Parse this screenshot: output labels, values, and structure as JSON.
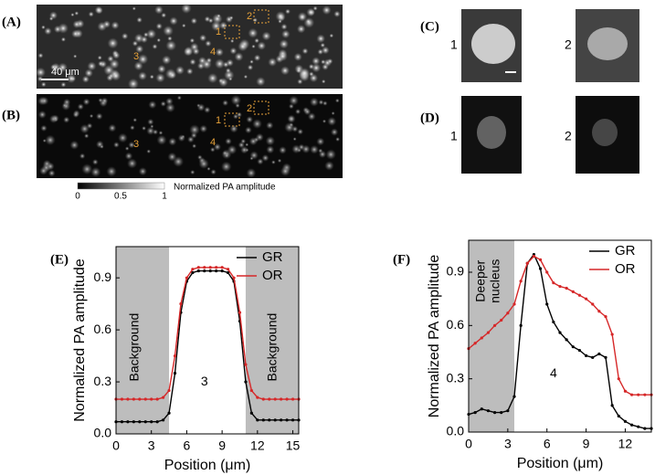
{
  "panels": {
    "a": {
      "label": "(A)",
      "markers": [
        "1",
        "2",
        "3",
        "4"
      ],
      "scale_bar": "40 μm"
    },
    "b": {
      "label": "(B)",
      "markers": [
        "1",
        "2",
        "3",
        "4"
      ]
    },
    "colorbar": {
      "ticks": [
        "0",
        "0.5",
        "1"
      ],
      "label": "Normalized PA amplitude"
    },
    "c": {
      "label": "(C)",
      "items": [
        "1",
        "2"
      ]
    },
    "d": {
      "label": "(D)",
      "items": [
        "1",
        "2"
      ]
    }
  },
  "chart_data": [
    {
      "type": "line",
      "panel_label": "(E)",
      "x_label": "Position (μm)",
      "y_label": "Normalized PA amplitude",
      "x": [
        0,
        0.5,
        1,
        1.5,
        2,
        2.5,
        3,
        3.5,
        4,
        4.5,
        5,
        5.5,
        6,
        6.5,
        7,
        7.5,
        8,
        8.5,
        9,
        9.5,
        10,
        10.5,
        11,
        11.5,
        12,
        12.5,
        13,
        13.5,
        14,
        14.5,
        15,
        15.5
      ],
      "series": [
        {
          "name": "GR",
          "color": "#000000",
          "values": [
            0.07,
            0.07,
            0.07,
            0.07,
            0.07,
            0.07,
            0.07,
            0.07,
            0.08,
            0.12,
            0.35,
            0.7,
            0.88,
            0.93,
            0.94,
            0.94,
            0.94,
            0.94,
            0.94,
            0.93,
            0.88,
            0.65,
            0.3,
            0.12,
            0.08,
            0.08,
            0.08,
            0.08,
            0.08,
            0.08,
            0.08,
            0.08
          ]
        },
        {
          "name": "OR",
          "color": "#d62728",
          "values": [
            0.2,
            0.2,
            0.2,
            0.2,
            0.2,
            0.2,
            0.2,
            0.2,
            0.21,
            0.25,
            0.45,
            0.75,
            0.9,
            0.95,
            0.96,
            0.96,
            0.96,
            0.96,
            0.96,
            0.95,
            0.9,
            0.7,
            0.4,
            0.25,
            0.21,
            0.2,
            0.2,
            0.2,
            0.2,
            0.2,
            0.2,
            0.2
          ]
        }
      ],
      "xlim": [
        0,
        15.5
      ],
      "xticks": [
        0,
        3,
        6,
        9,
        12,
        15
      ],
      "ylim": [
        0,
        1.08
      ],
      "yticks": [
        {
          "value": 0,
          "label": "0.0"
        },
        0.3,
        0.6,
        0.9
      ],
      "shaded": [
        [
          0,
          4.5
        ],
        [
          11,
          15.5
        ]
      ],
      "annotations": [
        {
          "text": "Background"
        },
        {
          "text": "3"
        },
        {
          "text": "Background"
        }
      ],
      "legend": "upper right"
    },
    {
      "type": "line",
      "panel_label": "(F)",
      "x_label": "Position (μm)",
      "y_label": "Normalized PA amplitude",
      "x": [
        0,
        0.5,
        1,
        1.5,
        2,
        2.5,
        3,
        3.5,
        4,
        4.5,
        5,
        5.5,
        6,
        6.5,
        7,
        7.5,
        8,
        8.5,
        9,
        9.5,
        10,
        10.5,
        11,
        11.5,
        12,
        12.5,
        13,
        13.5,
        14
      ],
      "series": [
        {
          "name": "GR",
          "color": "#000000",
          "values": [
            0.1,
            0.11,
            0.13,
            0.12,
            0.11,
            0.11,
            0.12,
            0.2,
            0.6,
            0.95,
            1.0,
            0.92,
            0.72,
            0.62,
            0.56,
            0.52,
            0.48,
            0.46,
            0.43,
            0.42,
            0.44,
            0.42,
            0.15,
            0.09,
            0.06,
            0.04,
            0.03,
            0.02,
            0.02
          ]
        },
        {
          "name": "OR",
          "color": "#d62728",
          "values": [
            0.47,
            0.5,
            0.53,
            0.56,
            0.6,
            0.63,
            0.67,
            0.72,
            0.85,
            0.95,
            0.99,
            0.97,
            0.9,
            0.84,
            0.82,
            0.81,
            0.79,
            0.77,
            0.75,
            0.72,
            0.68,
            0.65,
            0.55,
            0.3,
            0.23,
            0.21,
            0.21,
            0.21,
            0.21
          ]
        }
      ],
      "xlim": [
        0,
        14
      ],
      "xticks": [
        0,
        3,
        6,
        9,
        12
      ],
      "ylim": [
        0,
        1.08
      ],
      "yticks": [
        {
          "value": 0,
          "label": "0.0"
        },
        0.3,
        0.6,
        0.9
      ],
      "shaded": [
        [
          0,
          3.5
        ]
      ],
      "annotations": [
        {
          "text": "Deeper nucleus"
        },
        {
          "text": "4"
        }
      ],
      "legend": "upper right"
    }
  ]
}
